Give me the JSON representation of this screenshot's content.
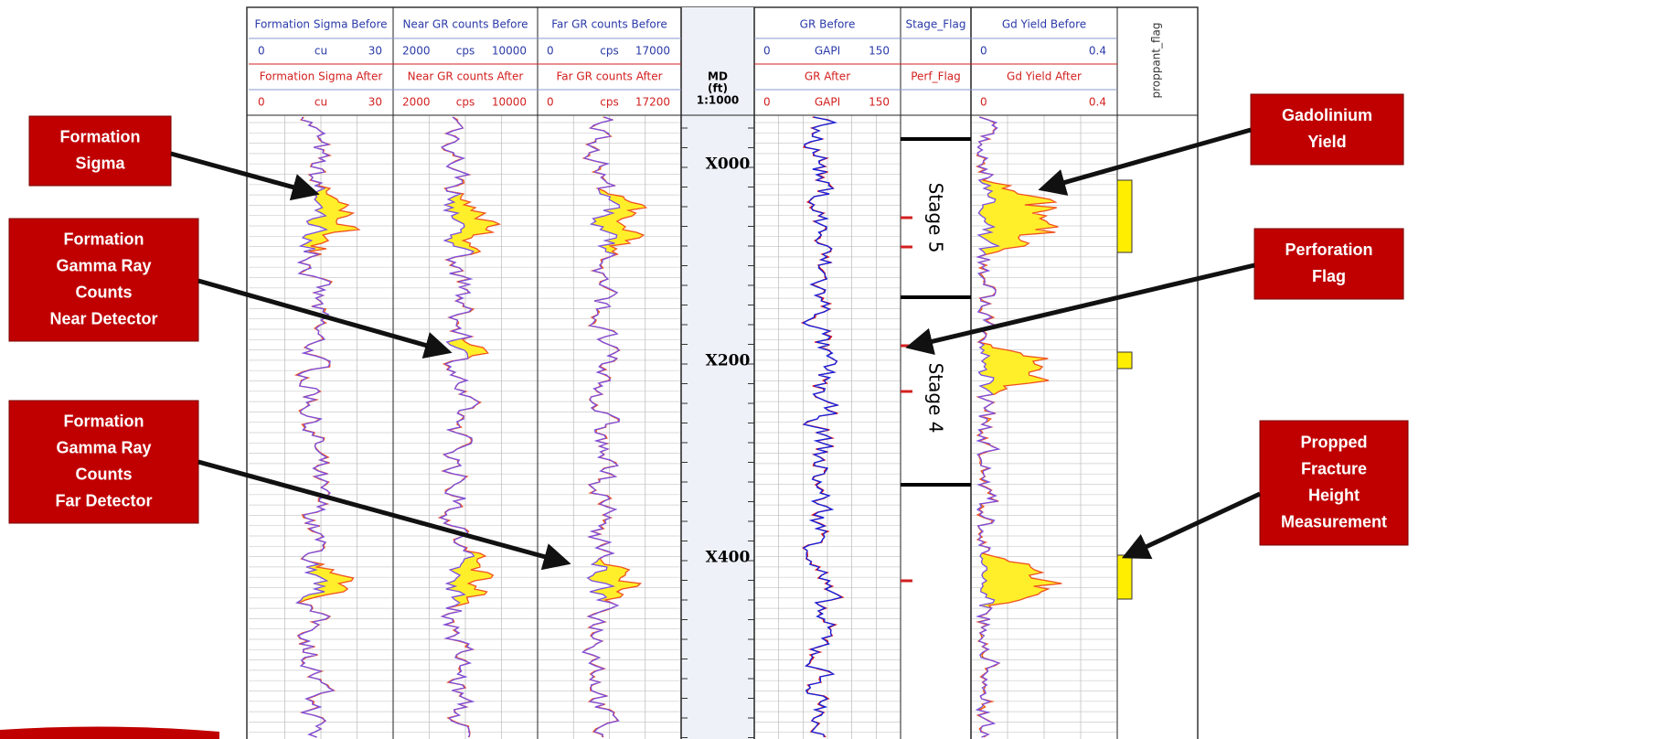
{
  "tracks": [
    {
      "before": "Formation Sigma Before",
      "before_scale": [
        "0",
        "cu",
        "30"
      ],
      "after": "Formation Sigma After",
      "after_scale": [
        "0",
        "cu",
        "30"
      ]
    },
    {
      "before": "Near GR counts Before",
      "before_scale": [
        "2000",
        "cps",
        "10000"
      ],
      "after": "Near GR counts After",
      "after_scale": [
        "2000",
        "cps",
        "10000"
      ]
    },
    {
      "before": "Far GR counts Before",
      "before_scale": [
        "0",
        "cps",
        "17000"
      ],
      "after": "Far GR counts After",
      "after_scale": [
        "0",
        "cps",
        "17200"
      ]
    },
    {
      "before": "GR Before",
      "before_scale": [
        "0",
        "GAPI",
        "150"
      ],
      "after": "GR After",
      "after_scale": [
        "0",
        "GAPI",
        "150"
      ]
    },
    {
      "before": "Stage_Flag",
      "after": "Perf_Flag"
    },
    {
      "before": "Gd Yield Before",
      "before_scale": [
        "0",
        "0.4"
      ],
      "after": "Gd Yield After",
      "after_scale": [
        "0",
        "0.4"
      ]
    },
    {
      "before": "proppant_flag"
    }
  ],
  "depth_header": [
    "MD",
    "(ft)",
    "1:1000"
  ],
  "depth_labels": [
    "X000",
    "X200",
    "X400"
  ],
  "stages": [
    "Stage 5",
    "Stage 4"
  ],
  "annotations": [
    {
      "lines": [
        "Formation",
        "Sigma"
      ]
    },
    {
      "lines": [
        "Formation",
        "Gamma Ray",
        "Counts",
        "Near Detector"
      ]
    },
    {
      "lines": [
        "Formation",
        "Gamma Ray",
        "Counts",
        "Far Detector"
      ]
    },
    {
      "lines": [
        "Gadolinium",
        "Yield"
      ]
    },
    {
      "lines": [
        "Perforation",
        "Flag"
      ]
    },
    {
      "lines": [
        "Propped",
        "Fracture",
        "Height",
        "Measurement"
      ]
    }
  ]
}
